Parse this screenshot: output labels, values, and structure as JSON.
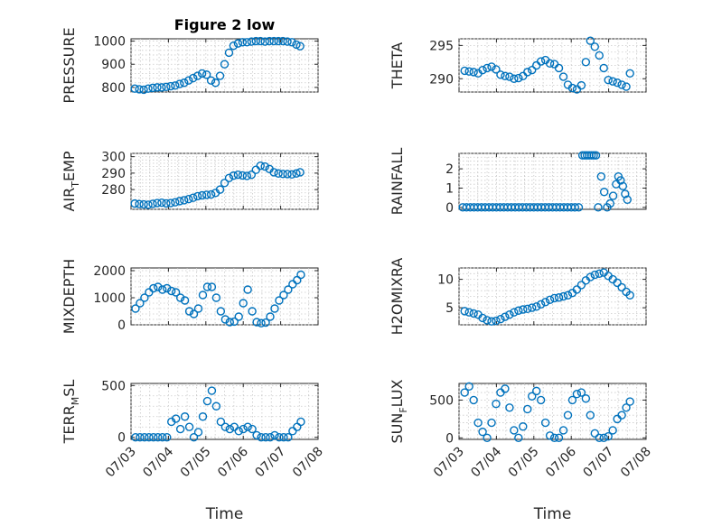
{
  "figure": {
    "title": "Figure 2 low",
    "marker_color": "#0072BD"
  },
  "chart_data": [
    {
      "id": "pressure",
      "type": "scatter",
      "title": "Figure 2 low",
      "ylabel": {
        "main": "PRESSURE",
        "sub": "",
        "tail": ""
      },
      "xlabel": "",
      "xlim": [
        0,
        5
      ],
      "ylim": [
        780,
        1010
      ],
      "yticks": [
        800,
        900,
        1000
      ],
      "xticks": [
        0,
        1,
        2,
        3,
        4,
        5
      ],
      "xticklabels": [
        "07/03",
        "07/04",
        "07/05",
        "07/06",
        "07/07",
        "07/08"
      ],
      "show_xticklabels": false,
      "grid": true,
      "series": [
        {
          "x": [
            0.1,
            0.22,
            0.34,
            0.46,
            0.58,
            0.7,
            0.82,
            0.94,
            1.06,
            1.18,
            1.3,
            1.42,
            1.54,
            1.66,
            1.78,
            1.9,
            2.02,
            2.14,
            2.26,
            2.38,
            2.5,
            2.62,
            2.74,
            2.86,
            2.98,
            3.1,
            3.22,
            3.34,
            3.46,
            3.58,
            3.7,
            3.82,
            3.94,
            4.06,
            4.18,
            4.3,
            4.42,
            4.52
          ],
          "y": [
            795,
            792,
            790,
            795,
            798,
            800,
            800,
            802,
            805,
            808,
            815,
            820,
            830,
            840,
            850,
            860,
            855,
            830,
            820,
            850,
            900,
            950,
            980,
            990,
            995,
            995,
            998,
            1000,
            1000,
            998,
            1000,
            1000,
            1000,
            1000,
            998,
            995,
            985,
            978
          ]
        }
      ]
    },
    {
      "id": "theta",
      "type": "scatter",
      "ylabel": {
        "main": "THETA",
        "sub": "",
        "tail": ""
      },
      "xlabel": "",
      "xlim": [
        0,
        5
      ],
      "ylim": [
        288,
        296
      ],
      "yticks": [
        290,
        295
      ],
      "xticks": [
        0,
        1,
        2,
        3,
        4,
        5
      ],
      "xticklabels": [
        "07/03",
        "07/04",
        "07/05",
        "07/06",
        "07/07",
        "07/08"
      ],
      "show_xticklabels": false,
      "grid": true,
      "series": [
        {
          "x": [
            0.15,
            0.27,
            0.39,
            0.51,
            0.63,
            0.75,
            0.87,
            0.99,
            1.11,
            1.23,
            1.35,
            1.47,
            1.59,
            1.71,
            1.83,
            1.95,
            2.07,
            2.19,
            2.31,
            2.43,
            2.55,
            2.67,
            2.79,
            2.91,
            3.03,
            3.15,
            3.27,
            3.39,
            3.51,
            3.63,
            3.75,
            3.87,
            3.99,
            4.11,
            4.23,
            4.35,
            4.47,
            4.57
          ],
          "y": [
            291.2,
            291.1,
            291,
            290.8,
            291.3,
            291.6,
            291.8,
            291.4,
            290.6,
            290.4,
            290.3,
            290,
            290.1,
            290.4,
            291,
            291.3,
            292,
            292.6,
            292.8,
            292.3,
            292.2,
            291.6,
            290.3,
            289.1,
            288.6,
            288.4,
            289,
            292.5,
            295.7,
            294.8,
            293.5,
            291.6,
            289.8,
            289.6,
            289.4,
            289.1,
            288.8,
            290.8
          ]
        }
      ]
    },
    {
      "id": "airtemp",
      "type": "scatter",
      "ylabel": {
        "main": "AIR",
        "sub": "T",
        "tail": "EMP"
      },
      "xlabel": "",
      "xlim": [
        0,
        5
      ],
      "ylim": [
        268,
        302
      ],
      "yticks": [
        280,
        290,
        300
      ],
      "xticks": [
        0,
        1,
        2,
        3,
        4,
        5
      ],
      "xticklabels": [
        "07/03",
        "07/04",
        "07/05",
        "07/06",
        "07/07",
        "07/08"
      ],
      "show_xticklabels": false,
      "grid": true,
      "series": [
        {
          "x": [
            0.1,
            0.22,
            0.34,
            0.46,
            0.58,
            0.7,
            0.82,
            0.94,
            1.06,
            1.18,
            1.3,
            1.42,
            1.54,
            1.66,
            1.78,
            1.9,
            2.02,
            2.14,
            2.26,
            2.38,
            2.5,
            2.62,
            2.74,
            2.86,
            2.98,
            3.1,
            3.22,
            3.34,
            3.46,
            3.58,
            3.7,
            3.82,
            3.94,
            4.06,
            4.18,
            4.3,
            4.42,
            4.52
          ],
          "y": [
            271.5,
            271.2,
            271,
            270.8,
            271.3,
            271.8,
            272,
            271.6,
            271.8,
            272.3,
            273,
            273.5,
            274.2,
            275,
            276,
            276.5,
            276.8,
            277,
            278,
            280,
            284,
            287,
            288.5,
            289,
            288.6,
            288.3,
            289,
            292,
            294.5,
            294,
            292.5,
            290.5,
            289.8,
            289.5,
            289.4,
            289.2,
            289.8,
            290.5
          ]
        }
      ]
    },
    {
      "id": "rainfall",
      "type": "scatter",
      "ylabel": {
        "main": "RAINFALL",
        "sub": "",
        "tail": ""
      },
      "xlabel": "",
      "xlim": [
        0,
        5
      ],
      "ylim": [
        -0.1,
        2.8
      ],
      "yticks": [
        0,
        1,
        2
      ],
      "xticks": [
        0,
        1,
        2,
        3,
        4,
        5
      ],
      "xticklabels": [
        "07/03",
        "07/04",
        "07/05",
        "07/06",
        "07/07",
        "07/08"
      ],
      "show_xticklabels": false,
      "grid": true,
      "series": [
        {
          "x": [
            0.1,
            0.2,
            0.3,
            0.4,
            0.5,
            0.6,
            0.7,
            0.8,
            0.9,
            1.0,
            1.1,
            1.2,
            1.3,
            1.4,
            1.5,
            1.6,
            1.7,
            1.8,
            1.9,
            2.0,
            2.1,
            2.2,
            2.3,
            2.4,
            2.5,
            2.6,
            2.7,
            2.8,
            2.9,
            3.0,
            3.1,
            3.2,
            3.3,
            3.36,
            3.42,
            3.48,
            3.54,
            3.6,
            3.66,
            3.72,
            3.8,
            3.88,
            3.96,
            4.04,
            4.12,
            4.2,
            4.26,
            4.32,
            4.38,
            4.44,
            4.5
          ],
          "y": [
            0,
            0,
            0,
            0,
            0,
            0,
            0,
            0,
            0,
            0,
            0,
            0,
            0,
            0,
            0,
            0,
            0,
            0,
            0,
            0,
            0,
            0,
            0,
            0,
            0,
            0,
            0,
            0,
            0,
            0,
            0,
            0,
            2.7,
            2.7,
            2.7,
            2.7,
            2.7,
            2.7,
            2.7,
            0,
            1.6,
            0.8,
            0,
            0.2,
            0.6,
            1.2,
            1.6,
            1.4,
            1.1,
            0.7,
            0.4
          ]
        }
      ]
    },
    {
      "id": "mixdepth",
      "type": "scatter",
      "ylabel": {
        "main": "MIXDEPTH",
        "sub": "",
        "tail": ""
      },
      "xlabel": "",
      "xlim": [
        0,
        5
      ],
      "ylim": [
        0,
        2100
      ],
      "yticks": [
        0,
        1000,
        2000
      ],
      "xticks": [
        0,
        1,
        2,
        3,
        4,
        5
      ],
      "xticklabels": [
        "07/03",
        "07/04",
        "07/05",
        "07/06",
        "07/07",
        "07/08"
      ],
      "show_xticklabels": false,
      "grid": true,
      "series": [
        {
          "x": [
            0.12,
            0.24,
            0.36,
            0.48,
            0.6,
            0.72,
            0.84,
            0.96,
            1.08,
            1.2,
            1.32,
            1.44,
            1.56,
            1.68,
            1.8,
            1.92,
            2.04,
            2.16,
            2.28,
            2.4,
            2.52,
            2.64,
            2.76,
            2.88,
            3.0,
            3.12,
            3.24,
            3.36,
            3.48,
            3.6,
            3.72,
            3.84,
            3.96,
            4.08,
            4.2,
            4.32,
            4.44,
            4.54
          ],
          "y": [
            600,
            800,
            1000,
            1200,
            1350,
            1400,
            1300,
            1350,
            1250,
            1200,
            1000,
            900,
            500,
            400,
            600,
            1100,
            1400,
            1400,
            1000,
            500,
            200,
            100,
            120,
            300,
            800,
            1300,
            500,
            100,
            60,
            80,
            300,
            600,
            900,
            1100,
            1300,
            1500,
            1650,
            1850
          ]
        }
      ]
    },
    {
      "id": "h2omixra",
      "type": "scatter",
      "ylabel": {
        "main": "H2OMIXRA",
        "sub": "",
        "tail": ""
      },
      "xlabel": "",
      "xlim": [
        0,
        5
      ],
      "ylim": [
        2,
        12
      ],
      "yticks": [
        5,
        10
      ],
      "xticks": [
        0,
        1,
        2,
        3,
        4,
        5
      ],
      "xticklabels": [
        "07/03",
        "07/04",
        "07/05",
        "07/06",
        "07/07",
        "07/08"
      ],
      "show_xticklabels": false,
      "grid": true,
      "series": [
        {
          "x": [
            0.15,
            0.27,
            0.39,
            0.51,
            0.63,
            0.75,
            0.87,
            0.99,
            1.11,
            1.23,
            1.35,
            1.47,
            1.59,
            1.71,
            1.83,
            1.95,
            2.07,
            2.19,
            2.31,
            2.43,
            2.55,
            2.67,
            2.79,
            2.91,
            3.03,
            3.15,
            3.27,
            3.39,
            3.51,
            3.63,
            3.75,
            3.87,
            3.99,
            4.11,
            4.23,
            4.35,
            4.47,
            4.57
          ],
          "y": [
            4.4,
            4.2,
            4,
            3.8,
            3.2,
            2.8,
            2.6,
            2.7,
            3,
            3.4,
            3.8,
            4.2,
            4.5,
            4.7,
            4.8,
            5,
            5.2,
            5.6,
            6,
            6.4,
            6.7,
            6.8,
            7,
            7.2,
            7.6,
            8.2,
            9,
            9.8,
            10.4,
            10.8,
            11,
            11.2,
            10.6,
            10,
            9.4,
            8.6,
            7.8,
            7.2
          ]
        }
      ]
    },
    {
      "id": "terrmsl",
      "type": "scatter",
      "ylabel": {
        "main": "TERR",
        "sub": "M",
        "tail": "SL"
      },
      "xlabel": "Time",
      "xlim": [
        0,
        5
      ],
      "ylim": [
        -20,
        520
      ],
      "yticks": [
        0,
        500
      ],
      "xticks": [
        0,
        1,
        2,
        3,
        4,
        5
      ],
      "xticklabels": [
        "07/03",
        "07/04",
        "07/05",
        "07/06",
        "07/07",
        "07/08"
      ],
      "show_xticklabels": true,
      "grid": true,
      "series": [
        {
          "x": [
            0.12,
            0.24,
            0.36,
            0.48,
            0.6,
            0.72,
            0.84,
            0.96,
            1.08,
            1.2,
            1.32,
            1.44,
            1.56,
            1.68,
            1.8,
            1.92,
            2.04,
            2.16,
            2.28,
            2.4,
            2.52,
            2.64,
            2.76,
            2.88,
            3.0,
            3.12,
            3.24,
            3.36,
            3.48,
            3.6,
            3.72,
            3.84,
            3.96,
            4.08,
            4.2,
            4.32,
            4.44,
            4.54
          ],
          "y": [
            0,
            0,
            0,
            0,
            0,
            0,
            0,
            0,
            150,
            180,
            80,
            200,
            100,
            0,
            50,
            200,
            350,
            450,
            300,
            150,
            100,
            80,
            100,
            60,
            80,
            100,
            80,
            20,
            0,
            0,
            0,
            20,
            0,
            0,
            0,
            60,
            100,
            150
          ]
        }
      ]
    },
    {
      "id": "sunflux",
      "type": "scatter",
      "ylabel": {
        "main": "SUN",
        "sub": "F",
        "tail": "LUX"
      },
      "xlabel": "Time",
      "xlim": [
        0,
        5
      ],
      "ylim": [
        -20,
        720
      ],
      "yticks": [
        0,
        500
      ],
      "xticks": [
        0,
        1,
        2,
        3,
        4,
        5
      ],
      "xticklabels": [
        "07/03",
        "07/04",
        "07/05",
        "07/06",
        "07/07",
        "07/08"
      ],
      "show_xticklabels": true,
      "grid": true,
      "series": [
        {
          "x": [
            0.15,
            0.27,
            0.39,
            0.51,
            0.63,
            0.75,
            0.87,
            0.99,
            1.11,
            1.23,
            1.35,
            1.47,
            1.59,
            1.71,
            1.83,
            1.95,
            2.07,
            2.19,
            2.31,
            2.43,
            2.55,
            2.67,
            2.79,
            2.91,
            3.03,
            3.15,
            3.27,
            3.39,
            3.51,
            3.63,
            3.75,
            3.87,
            3.99,
            4.11,
            4.23,
            4.35,
            4.47,
            4.57
          ],
          "y": [
            600,
            680,
            500,
            200,
            80,
            0,
            200,
            450,
            600,
            650,
            400,
            100,
            0,
            150,
            380,
            550,
            620,
            500,
            200,
            30,
            0,
            0,
            100,
            300,
            500,
            580,
            600,
            520,
            300,
            60,
            0,
            0,
            20,
            100,
            250,
            300,
            400,
            480
          ]
        }
      ]
    }
  ]
}
